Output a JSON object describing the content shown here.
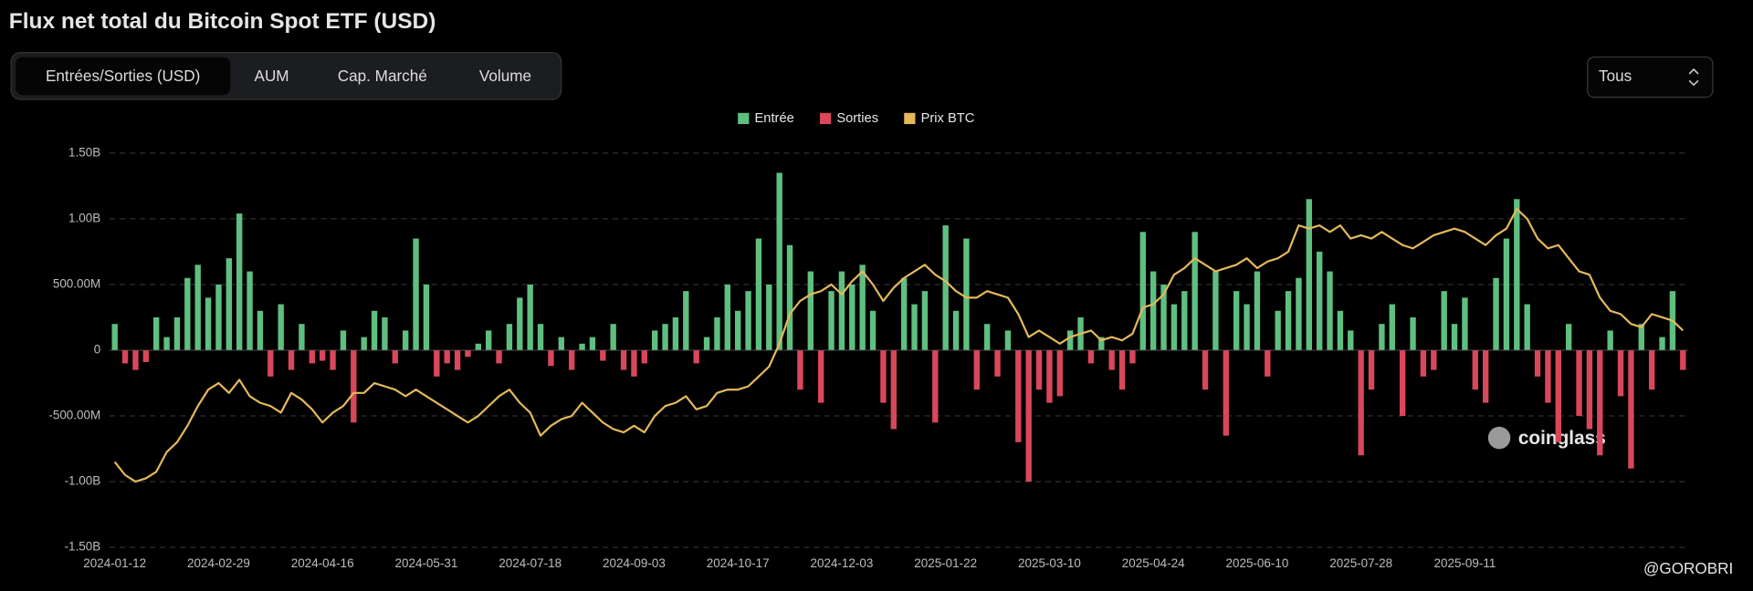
{
  "title": "Flux net total du Bitcoin Spot ETF (USD)",
  "tabs": [
    "Entrées/Sorties (USD)",
    "AUM",
    "Cap. Marché",
    "Volume"
  ],
  "selector": "Tous",
  "watermark": "coinglass",
  "credit": "@GOROBRI",
  "chart_data": {
    "type": "bar",
    "categories": [
      "2024-01-12",
      null,
      null,
      null,
      null,
      null,
      null,
      null,
      null,
      null,
      "2024-02-29",
      null,
      null,
      null,
      null,
      null,
      null,
      null,
      null,
      null,
      "2024-04-16",
      null,
      null,
      null,
      null,
      null,
      null,
      null,
      null,
      null,
      "2024-05-31",
      null,
      null,
      null,
      null,
      null,
      null,
      null,
      null,
      null,
      "2024-07-18",
      null,
      null,
      null,
      null,
      null,
      null,
      null,
      null,
      null,
      "2024-09-03",
      null,
      null,
      null,
      null,
      null,
      null,
      null,
      null,
      null,
      "2024-10-17",
      null,
      null,
      null,
      null,
      null,
      null,
      null,
      null,
      null,
      "2024-12-03",
      null,
      null,
      null,
      null,
      null,
      null,
      null,
      null,
      null,
      "2025-01-22",
      null,
      null,
      null,
      null,
      null,
      null,
      null,
      null,
      null,
      "2025-03-10",
      null,
      null,
      null,
      null,
      null,
      null,
      null,
      null,
      null,
      "2025-04-24",
      null,
      null,
      null,
      null,
      null,
      null,
      null,
      null,
      null,
      "2025-06-10",
      null,
      null,
      null,
      null,
      null,
      null,
      null,
      null,
      null,
      "2025-07-28",
      null,
      null,
      null,
      null,
      null,
      null,
      null,
      null,
      null,
      "2025-09-11",
      null,
      null,
      null,
      null,
      null,
      null,
      null,
      null,
      null,
      null,
      null,
      null,
      null,
      null,
      null,
      null,
      null,
      null,
      null,
      null,
      null
    ],
    "series": [
      {
        "name": "Entrée",
        "color": "#5fbf7f",
        "values": [
          200000000,
          null,
          null,
          null,
          250000000,
          100000000,
          250000000,
          550000000,
          650000000,
          400000000,
          500000000,
          700000000,
          1040000000,
          600000000,
          300000000,
          null,
          350000000,
          null,
          200000000,
          null,
          null,
          null,
          150000000,
          null,
          100000000,
          300000000,
          250000000,
          null,
          150000000,
          850000000,
          500000000,
          null,
          null,
          null,
          null,
          50000000,
          150000000,
          null,
          200000000,
          400000000,
          500000000,
          200000000,
          null,
          100000000,
          null,
          50000000,
          100000000,
          null,
          200000000,
          null,
          null,
          null,
          150000000,
          200000000,
          250000000,
          450000000,
          null,
          100000000,
          250000000,
          500000000,
          300000000,
          450000000,
          850000000,
          500000000,
          1350000000,
          800000000,
          null,
          600000000,
          null,
          450000000,
          600000000,
          500000000,
          650000000,
          300000000,
          null,
          null,
          550000000,
          350000000,
          450000000,
          null,
          950000000,
          300000000,
          850000000,
          null,
          200000000,
          null,
          150000000,
          null,
          null,
          null,
          null,
          null,
          150000000,
          250000000,
          null,
          100000000,
          null,
          null,
          null,
          900000000,
          600000000,
          500000000,
          350000000,
          450000000,
          900000000,
          null,
          600000000,
          null,
          450000000,
          350000000,
          600000000,
          null,
          300000000,
          450000000,
          550000000,
          1150000000,
          750000000,
          600000000,
          300000000,
          150000000,
          null,
          null,
          200000000,
          350000000,
          null,
          250000000,
          null,
          null,
          450000000,
          200000000,
          400000000,
          null,
          null,
          550000000,
          850000000,
          1150000000,
          350000000,
          null,
          null,
          null,
          200000000,
          null,
          null,
          null,
          150000000,
          null,
          null,
          200000000,
          null,
          100000000,
          450000000,
          null
        ]
      },
      {
        "name": "Sorties",
        "color": "#d9475a",
        "values": [
          null,
          -100000000,
          -150000000,
          -90000000,
          null,
          null,
          null,
          null,
          null,
          null,
          null,
          null,
          null,
          null,
          null,
          -200000000,
          null,
          -150000000,
          null,
          -100000000,
          -80000000,
          -150000000,
          null,
          -550000000,
          null,
          null,
          null,
          -100000000,
          null,
          null,
          null,
          -200000000,
          -100000000,
          -150000000,
          -50000000,
          null,
          null,
          -100000000,
          null,
          null,
          null,
          null,
          -120000000,
          null,
          -150000000,
          null,
          null,
          -80000000,
          null,
          -150000000,
          -200000000,
          -100000000,
          null,
          null,
          null,
          null,
          -100000000,
          null,
          null,
          null,
          null,
          null,
          null,
          null,
          null,
          null,
          -300000000,
          null,
          -400000000,
          null,
          null,
          null,
          null,
          null,
          -400000000,
          -600000000,
          null,
          null,
          null,
          -550000000,
          null,
          null,
          null,
          -300000000,
          null,
          -200000000,
          null,
          -700000000,
          -1000000000,
          -300000000,
          -400000000,
          -350000000,
          null,
          null,
          -100000000,
          null,
          -150000000,
          -300000000,
          -100000000,
          null,
          null,
          null,
          null,
          null,
          null,
          -300000000,
          null,
          -650000000,
          null,
          null,
          null,
          -200000000,
          null,
          null,
          null,
          null,
          null,
          null,
          null,
          null,
          -800000000,
          -300000000,
          null,
          null,
          -500000000,
          null,
          -200000000,
          -150000000,
          null,
          null,
          null,
          -300000000,
          -400000000,
          null,
          null,
          null,
          null,
          -200000000,
          -400000000,
          -700000000,
          null,
          -500000000,
          -600000000,
          -800000000,
          null,
          -350000000,
          -900000000,
          null,
          -300000000,
          null,
          null,
          -150000000
        ]
      },
      {
        "name": "Prix BTC",
        "color": "#e3b95c",
        "type": "line",
        "axis": "y2",
        "values": [
          46000,
          42000,
          40000,
          41000,
          43000,
          49000,
          52000,
          57000,
          63000,
          68000,
          70000,
          67000,
          71000,
          66000,
          64000,
          63000,
          61000,
          67000,
          65000,
          62000,
          58000,
          61000,
          63000,
          67000,
          67000,
          70000,
          69000,
          68000,
          66000,
          68000,
          66000,
          64000,
          62000,
          60000,
          58000,
          60000,
          63000,
          66000,
          68000,
          64000,
          61000,
          54000,
          57000,
          59000,
          60000,
          64000,
          61000,
          58000,
          56000,
          55000,
          57000,
          55000,
          60000,
          63000,
          64000,
          66000,
          62000,
          63000,
          67000,
          68000,
          68000,
          69000,
          72000,
          75000,
          82000,
          91000,
          95000,
          97000,
          98000,
          100000,
          97000,
          101000,
          104000,
          100000,
          95000,
          99000,
          102000,
          104000,
          106000,
          103000,
          101000,
          98000,
          96000,
          96000,
          98000,
          97000,
          96000,
          91000,
          84000,
          86000,
          84000,
          82000,
          84000,
          85000,
          86000,
          83000,
          84000,
          83000,
          85000,
          93000,
          94000,
          97000,
          103000,
          105000,
          108000,
          106000,
          104000,
          105000,
          106000,
          108000,
          105000,
          107000,
          108000,
          110000,
          118000,
          117000,
          118000,
          116000,
          118000,
          114000,
          115000,
          114000,
          116000,
          114000,
          112000,
          111000,
          113000,
          115000,
          116000,
          117000,
          116000,
          114000,
          112000,
          115000,
          117000,
          123000,
          120000,
          114000,
          111000,
          112000,
          108000,
          104000,
          103000,
          96000,
          92000,
          91000,
          88000,
          87000,
          91000,
          90000,
          89000,
          86000
        ]
      }
    ],
    "ylim": [
      -1500000000,
      1500000000
    ],
    "yticks": [
      {
        "value": -1500000000,
        "label": "-1.50B"
      },
      {
        "value": -1000000000,
        "label": "-1.00B"
      },
      {
        "value": -500000000,
        "label": "-500.00M"
      },
      0,
      {
        "value": 500000000,
        "label": "500.00M"
      },
      {
        "value": 1000000000,
        "label": "1.00B"
      },
      {
        "value": 1500000000,
        "label": "1.50B"
      }
    ],
    "y2lim": [
      20000,
      140000
    ],
    "grid": true,
    "legend": "top"
  }
}
